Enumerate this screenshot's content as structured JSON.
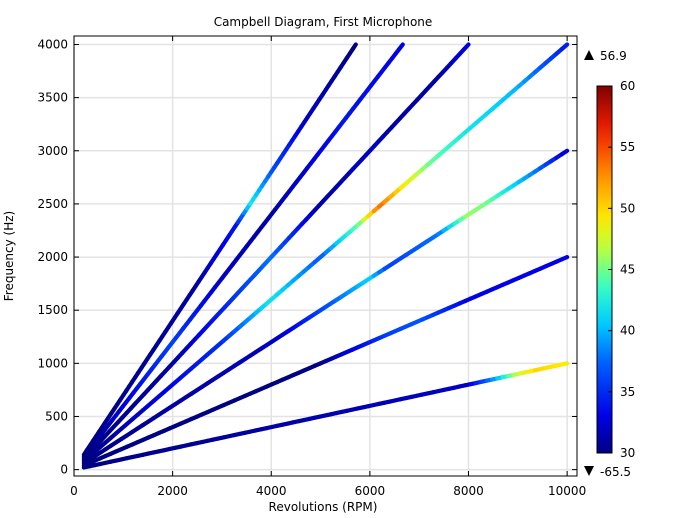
{
  "chart_data": {
    "type": "line",
    "title": "Campbell Diagram, First Microphone",
    "xlabel": "Revolutions (RPM)",
    "ylabel": "Frequency (Hz)",
    "xlim": [
      0,
      10200
    ],
    "ylim": [
      -60,
      4080
    ],
    "x_ticks": [
      0,
      2000,
      4000,
      6000,
      8000,
      10000
    ],
    "y_ticks": [
      0,
      500,
      1000,
      1500,
      2000,
      2500,
      3000,
      3500,
      4000
    ],
    "grid": true,
    "colorbar": {
      "min": 30,
      "max": 60,
      "ticks": [
        30,
        35,
        40,
        45,
        50,
        55,
        60
      ],
      "data_max_label": "56.9",
      "data_min_label": "-65.5",
      "colormap": "rainbow"
    },
    "series": [
      {
        "order": 6,
        "x_range": [
          200,
          10000
        ],
        "color_profile": [
          [
            200,
            30
          ],
          [
            4000,
            31
          ],
          [
            8000,
            32
          ],
          [
            8600,
            40
          ],
          [
            9000,
            47
          ],
          [
            9400,
            50
          ],
          [
            10000,
            49
          ]
        ]
      },
      {
        "order": 12,
        "x_range": [
          200,
          10000
        ],
        "color_profile": [
          [
            200,
            30
          ],
          [
            5000,
            30
          ],
          [
            6400,
            36
          ],
          [
            7000,
            37
          ],
          [
            8000,
            33
          ],
          [
            10000,
            33
          ]
        ]
      },
      {
        "order": 18,
        "x_range": [
          200,
          10000
        ],
        "color_profile": [
          [
            200,
            30
          ],
          [
            4200,
            32
          ],
          [
            5400,
            38
          ],
          [
            6000,
            41
          ],
          [
            6400,
            36
          ],
          [
            7400,
            38
          ],
          [
            8000,
            46
          ],
          [
            8400,
            45
          ],
          [
            8800,
            42
          ],
          [
            9400,
            38
          ],
          [
            10000,
            32
          ]
        ]
      },
      {
        "order": 24,
        "x_range": [
          200,
          10000
        ],
        "color_profile": [
          [
            200,
            30
          ],
          [
            3000,
            35
          ],
          [
            4000,
            42
          ],
          [
            5000,
            37
          ],
          [
            5800,
            45
          ],
          [
            6200,
            54
          ],
          [
            6600,
            50
          ],
          [
            7200,
            45
          ],
          [
            8000,
            42
          ],
          [
            9000,
            40
          ],
          [
            10000,
            34
          ]
        ]
      },
      {
        "order": 30,
        "x_range": [
          200,
          8000
        ],
        "color_profile": [
          [
            200,
            30
          ],
          [
            2000,
            31
          ],
          [
            4000,
            38
          ],
          [
            5000,
            31
          ],
          [
            6000,
            32
          ],
          [
            6600,
            31
          ],
          [
            7400,
            31
          ],
          [
            8000,
            33
          ]
        ]
      },
      {
        "order": 36,
        "x_range": [
          200,
          6667
        ],
        "color_profile": [
          [
            200,
            30
          ],
          [
            2000,
            36
          ],
          [
            3000,
            32
          ],
          [
            4000,
            31
          ],
          [
            5500,
            34
          ],
          [
            6667,
            33
          ]
        ]
      },
      {
        "order": 42,
        "x_range": [
          200,
          5714
        ],
        "color_profile": [
          [
            200,
            30
          ],
          [
            2500,
            31
          ],
          [
            3300,
            34
          ],
          [
            3600,
            42
          ],
          [
            4100,
            36
          ],
          [
            4700,
            32
          ],
          [
            5714,
            30
          ]
        ]
      }
    ]
  }
}
